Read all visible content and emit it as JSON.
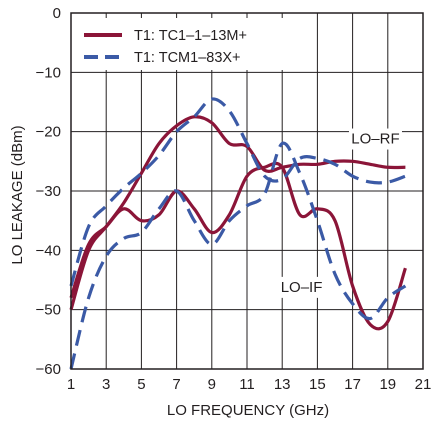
{
  "chart_data": {
    "type": "line",
    "xlabel": "LO FREQUENCY (GHz)",
    "ylabel": "LO LEAKAGE (dBm)",
    "xlim": [
      1,
      21
    ],
    "ylim": [
      -60,
      0
    ],
    "xticks": [
      1,
      3,
      5,
      7,
      9,
      11,
      13,
      15,
      17,
      19,
      21
    ],
    "yticks": [
      0,
      -10,
      -20,
      -30,
      -40,
      -50,
      -60
    ],
    "grid": true,
    "legend_position": "top-left",
    "annotations": [
      {
        "text": "LO–RF",
        "x": 18.3,
        "y": -22
      },
      {
        "text": "LO–IF",
        "x": 14.1,
        "y": -47
      }
    ],
    "series": [
      {
        "name": "T1: TC1–1–13M+",
        "color": "#8b1538",
        "dash": "solid",
        "curves": [
          {
            "label": "LO–RF",
            "x": [
              1,
              2,
              3,
              4,
              5,
              6,
              7,
              8,
              9,
              10,
              11,
              12,
              13,
              14,
              15,
              16,
              17,
              18,
              19,
              20
            ],
            "y": [
              -50,
              -40,
              -36,
              -32,
              -27,
              -22,
              -19,
              -17.5,
              -18.5,
              -22,
              -22.5,
              -26.5,
              -26,
              -25.5,
              -25.5,
              -25,
              -25,
              -25.5,
              -26,
              -26
            ]
          },
          {
            "label": "LO–IF",
            "x": [
              1,
              2,
              3,
              4,
              5,
              6,
              7,
              8,
              9,
              10,
              11,
              12,
              13,
              14,
              15,
              16,
              17,
              18,
              19,
              20
            ],
            "y": [
              -48,
              -39,
              -36,
              -33,
              -35,
              -34,
              -30,
              -33,
              -37,
              -34,
              -27.5,
              -26,
              -26,
              -34,
              -33,
              -35,
              -46,
              -52.5,
              -52,
              -43
            ]
          }
        ]
      },
      {
        "name": "T1: TCM1–83X+",
        "color": "#3b5aa6",
        "dash": "dashed",
        "curves": [
          {
            "label": "LO–RF",
            "x": [
              1,
              2,
              3,
              4,
              5,
              6,
              7,
              8,
              9,
              10,
              11,
              12,
              13,
              14,
              15,
              16,
              17,
              18,
              19,
              20
            ],
            "y": [
              -46,
              -36,
              -32.5,
              -29.5,
              -27,
              -24,
              -20,
              -17.5,
              -14.5,
              -16.5,
              -22,
              -27.5,
              -28,
              -24.5,
              -24.5,
              -25.5,
              -27.5,
              -28.5,
              -28.5,
              -27.5
            ]
          },
          {
            "label": "LO–IF",
            "x": [
              1,
              2,
              3,
              4,
              5,
              6,
              7,
              8,
              9,
              10,
              11,
              12,
              13,
              14,
              15,
              16,
              17,
              18,
              19,
              20
            ],
            "y": [
              -60,
              -48,
              -41,
              -38,
              -37,
              -33,
              -30,
              -35,
              -39,
              -35,
              -32.5,
              -30.5,
              -22,
              -27,
              -35,
              -44,
              -49,
              -51.5,
              -48,
              -46
            ]
          }
        ]
      }
    ]
  }
}
